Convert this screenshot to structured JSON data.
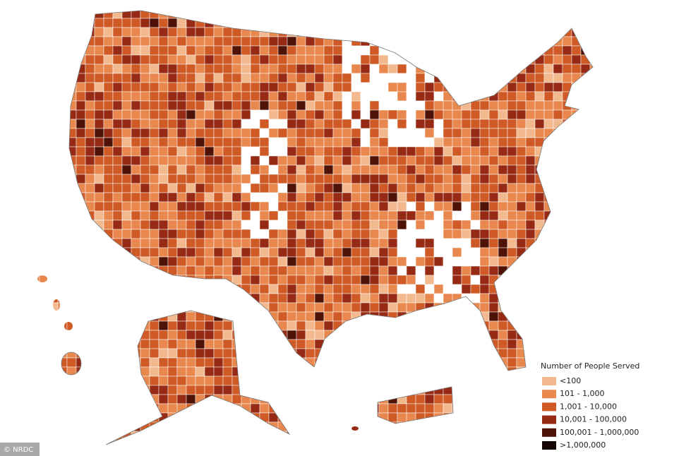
{
  "legend": {
    "title": "Number of People Served",
    "items": [
      {
        "label": "<100",
        "color": "#f2b98f"
      },
      {
        "label": "101 - 1,000",
        "color": "#e8884f"
      },
      {
        "label": "1,001 - 10,000",
        "color": "#cf5a26"
      },
      {
        "label": "10,001 - 100,000",
        "color": "#962a14"
      },
      {
        "label": "100,001 - 1,000,000",
        "color": "#4f1206"
      },
      {
        "label": ">1,000,000",
        "color": "#140402"
      }
    ]
  },
  "credit": "© NRDC"
}
